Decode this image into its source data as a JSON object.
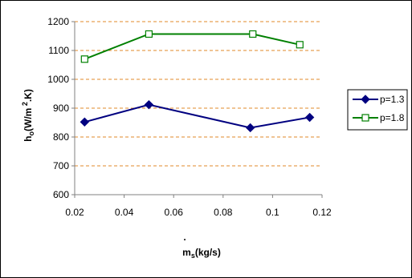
{
  "chart_data": {
    "type": "line",
    "xlabel": "ms(kg/s)",
    "ylabel": "ho(W/m2.K)",
    "xlim": [
      0.02,
      0.12
    ],
    "ylim": [
      600,
      1200
    ],
    "xticks": [
      "0.02",
      "0.04",
      "0.06",
      "0.08",
      "0.1",
      "0.12"
    ],
    "yticks": [
      "600",
      "700",
      "800",
      "900",
      "1000",
      "1100",
      "1200"
    ],
    "grid": "horizontal dashed",
    "legend_position": "right",
    "series": [
      {
        "name": "p=1.3",
        "color": "#000080",
        "marker": "diamond",
        "x": [
          0.024,
          0.05,
          0.091,
          0.115
        ],
        "y": [
          852,
          912,
          832,
          868
        ]
      },
      {
        "name": "p=1.8",
        "color": "#008000",
        "marker": "open-square",
        "x": [
          0.024,
          0.05,
          0.092,
          0.111
        ],
        "y": [
          1070,
          1157,
          1157,
          1120
        ]
      }
    ]
  }
}
